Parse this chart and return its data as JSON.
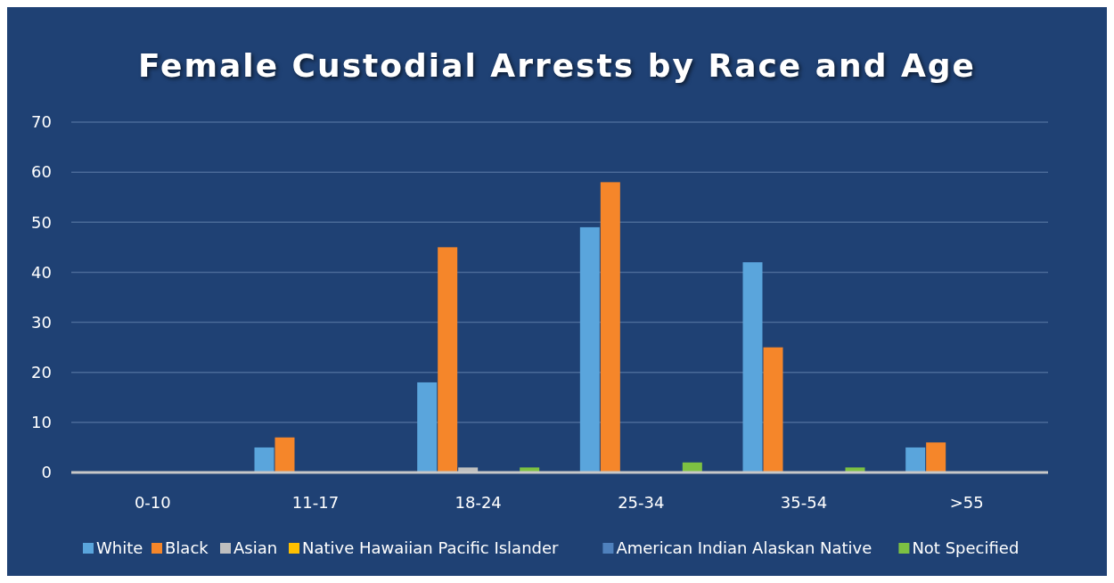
{
  "chart_data": {
    "type": "bar",
    "title": "Female Custodial Arrests by Race and Age",
    "categories": [
      "0-10",
      "11-17",
      "18-24",
      "25-34",
      "35-54",
      ">55"
    ],
    "series": [
      {
        "name": "White",
        "color": "#5aa5dc",
        "values": [
          0,
          5,
          18,
          49,
          42,
          5
        ]
      },
      {
        "name": "Black",
        "color": "#f5862a",
        "values": [
          0,
          7,
          45,
          58,
          25,
          6
        ]
      },
      {
        "name": "Asian",
        "color": "#bfbfbf",
        "values": [
          0,
          0,
          1,
          0,
          0,
          0
        ]
      },
      {
        "name": "Native Hawaiian Pacific Islander",
        "color": "#ffc000",
        "values": [
          0,
          0,
          0,
          0,
          0,
          0
        ]
      },
      {
        "name": "American Indian Alaskan Native",
        "color": "#4f81bd",
        "values": [
          0,
          0,
          0,
          0,
          0,
          0
        ]
      },
      {
        "name": "Not Specified",
        "color": "#7dc142",
        "values": [
          0,
          0,
          1,
          2,
          1,
          0
        ]
      }
    ],
    "ylim": [
      0,
      70
    ],
    "yticks": [
      0,
      10,
      20,
      30,
      40,
      50,
      60,
      70
    ],
    "grid": "y",
    "legend": "bottom"
  }
}
